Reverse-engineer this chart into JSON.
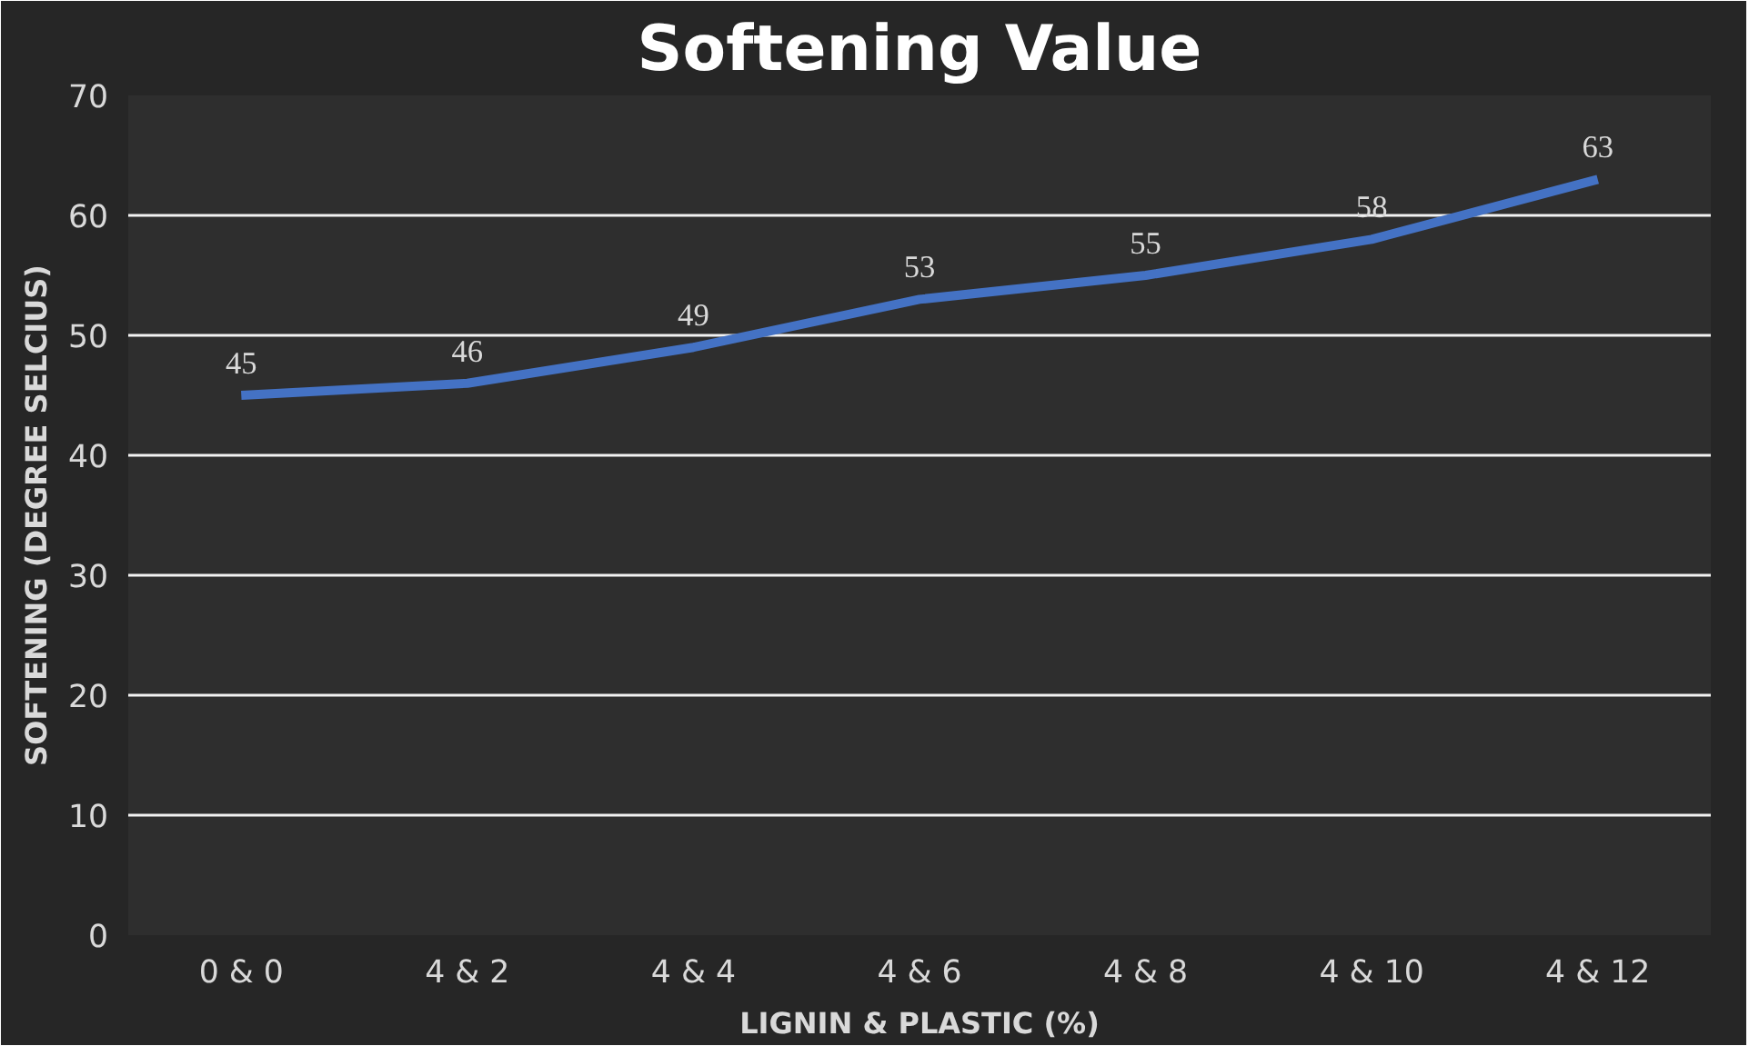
{
  "chart_data": {
    "type": "line",
    "title": "Softening Value",
    "xlabel": "LIGNIN & PLASTIC (%)",
    "ylabel": "SOFTENING (DEGREE SELCIUS)",
    "categories": [
      "0 & 0",
      "4 & 2",
      "4 & 4",
      "4 & 6",
      "4 & 8",
      "4 & 10",
      "4 & 12"
    ],
    "series": [
      {
        "color": "#4472c4",
        "values": [
          45,
          46,
          49,
          53,
          55,
          58,
          63
        ]
      }
    ],
    "ylim": [
      0,
      70
    ],
    "yticks": [
      0,
      10,
      20,
      30,
      40,
      50,
      60,
      70
    ],
    "grid": "y",
    "data_labels": true,
    "line_style": "solid"
  }
}
